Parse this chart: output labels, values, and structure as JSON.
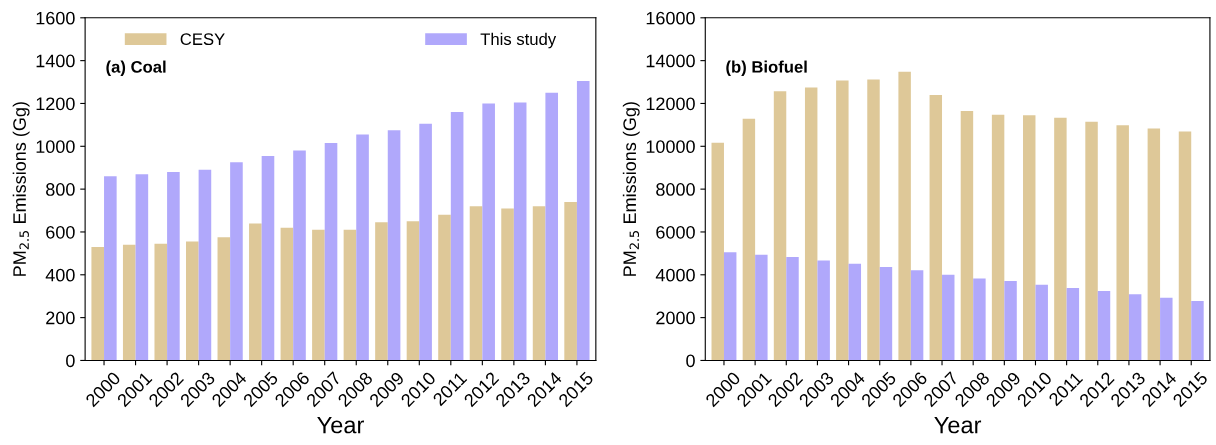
{
  "chart_data": [
    {
      "type": "bar",
      "annotations": [
        "(a) Coal"
      ],
      "xlabel": "Year",
      "ylabel": "PM$_{2.5}$ Emissions (Gg)",
      "categories": [
        "2000",
        "2001",
        "2002",
        "2003",
        "2004",
        "2005",
        "2006",
        "2007",
        "2008",
        "2009",
        "2010",
        "2011",
        "2012",
        "2013",
        "2014",
        "2015"
      ],
      "series": [
        {
          "name": "CESY",
          "color": "#dec898",
          "values": [
            530,
            540,
            545,
            555,
            575,
            640,
            620,
            610,
            610,
            645,
            650,
            680,
            720,
            710,
            720,
            740
          ]
        },
        {
          "name": "This study",
          "color": "#b0a8fb",
          "values": [
            860,
            870,
            880,
            890,
            925,
            955,
            980,
            1015,
            1055,
            1075,
            1105,
            1160,
            1200,
            1205,
            1250,
            1305
          ]
        }
      ],
      "ylim": [
        0,
        1600
      ],
      "yticks": [
        0,
        200,
        400,
        600,
        800,
        1000,
        1200,
        1400,
        1600
      ],
      "legend": "top",
      "grid": false
    },
    {
      "type": "bar",
      "annotations": [
        "(b) Biofuel"
      ],
      "xlabel": "Year",
      "ylabel": "PM$_{2.5}$ Emissions (Gg)",
      "categories": [
        "2000",
        "2001",
        "2002",
        "2003",
        "2004",
        "2005",
        "2006",
        "2007",
        "2008",
        "2009",
        "2010",
        "2011",
        "2012",
        "2013",
        "2014",
        "2015"
      ],
      "series": [
        {
          "color": "#dec898",
          "values": [
            10170,
            11290,
            12570,
            12740,
            13070,
            13120,
            13480,
            12400,
            11650,
            11470,
            11450,
            11330,
            11150,
            10980,
            10830,
            10690
          ]
        },
        {
          "color": "#b0a8fb",
          "values": [
            5050,
            4930,
            4830,
            4670,
            4520,
            4360,
            4210,
            4000,
            3830,
            3710,
            3530,
            3380,
            3240,
            3090,
            2930,
            2780
          ]
        }
      ],
      "ylim": [
        0,
        16000
      ],
      "yticks": [
        0,
        2000,
        4000,
        6000,
        8000,
        10000,
        12000,
        14000,
        16000
      ],
      "grid": false
    }
  ]
}
